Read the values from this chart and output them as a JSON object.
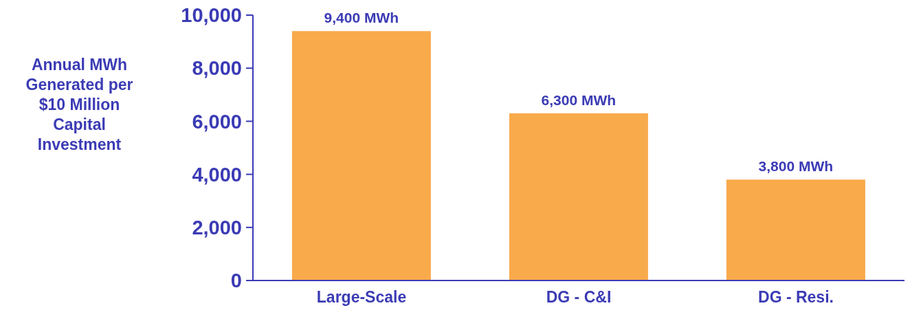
{
  "chart_data": {
    "type": "bar",
    "ylabel": "Annual MWh\nGenerated per\n$10 Million\nCapital\nInvestment",
    "categories": [
      "Large-Scale",
      "DG - C&I",
      "DG - Resi."
    ],
    "values": [
      9400,
      6300,
      3800
    ],
    "color": "#f9aa4b",
    "value_labels": [
      "9,400 MWh",
      "6,300 MWh",
      "3,800 MWh"
    ],
    "ylim": [
      0,
      10000
    ],
    "yticks": [
      0,
      {
        "value": 2000,
        "label": "2,000"
      },
      {
        "value": 4000,
        "label": "4,000"
      },
      {
        "value": 6000,
        "label": "6,000"
      },
      {
        "value": 8000,
        "label": "8,000"
      },
      {
        "value": 10000,
        "label": "10,000"
      }
    ],
    "grid": false,
    "legend": false
  }
}
